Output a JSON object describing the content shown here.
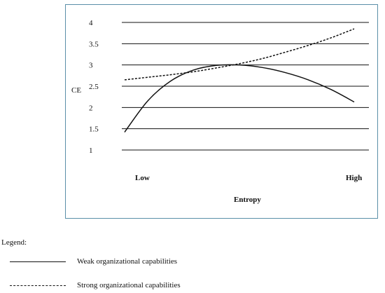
{
  "chart_data": {
    "type": "line",
    "ylabel": "CE",
    "xlabel": "Entropy",
    "categories": [
      "Low",
      "High"
    ],
    "yticks": [
      "1",
      "1.5",
      "2",
      "2.5",
      "3",
      "3.5",
      "4"
    ],
    "ylim": [
      1,
      4
    ],
    "grid": true,
    "legend_placement": "bottom-left",
    "series": [
      {
        "name": "Weak organizational capabilities",
        "style": "solid",
        "color": "#111111",
        "x": [
          0,
          0.1,
          0.2,
          0.3,
          0.4,
          0.5,
          0.6,
          0.7,
          0.8,
          0.9,
          1.0
        ],
        "y": [
          1.42,
          2.15,
          2.62,
          2.88,
          2.99,
          3.0,
          2.94,
          2.82,
          2.65,
          2.42,
          2.13
        ]
      },
      {
        "name": "Strong organizational capabilities",
        "style": "dashed",
        "color": "#111111",
        "x": [
          0,
          0.1,
          0.2,
          0.3,
          0.4,
          0.5,
          0.6,
          0.7,
          0.8,
          0.9,
          1.0
        ],
        "y": [
          2.65,
          2.71,
          2.77,
          2.84,
          2.93,
          3.03,
          3.15,
          3.3,
          3.46,
          3.64,
          3.85
        ]
      }
    ]
  },
  "legend": {
    "title": "Legend:"
  }
}
